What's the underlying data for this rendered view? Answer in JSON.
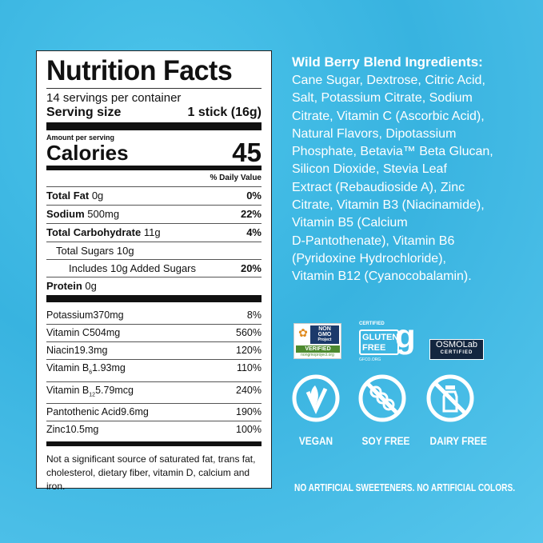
{
  "label": {
    "title": "Nutrition Facts",
    "servings": "14 servings per container",
    "serving_size_label": "Serving size",
    "serving_size_value": "1 stick (16g)",
    "amount_per_serving": "Amount per serving",
    "calories_label": "Calories",
    "calories_value": "45",
    "dv_header": "% Daily Value",
    "rows": [
      {
        "name": "Total Fat",
        "amount": "0g",
        "dv": "0%"
      },
      {
        "name": "Sodium",
        "amount": "500mg",
        "dv": "22%"
      },
      {
        "name": "Total Carbohydrate",
        "amount": "11g",
        "dv": "4%"
      },
      {
        "name": "Total Sugars",
        "amount": "10g",
        "dv": ""
      },
      {
        "name": "Includes 10g Added Sugars",
        "amount": "",
        "dv": "20%"
      },
      {
        "name": "Protein",
        "amount": "0g",
        "dv": ""
      }
    ],
    "vitamins": [
      {
        "name": "Potassium",
        "amount": "370mg",
        "dv": "8%"
      },
      {
        "name": "Vitamin C",
        "amount": "504mg",
        "dv": "560%"
      },
      {
        "name": "Niacin",
        "amount": "19.3mg",
        "dv": "120%"
      },
      {
        "name": "Vitamin B",
        "sub": "6",
        "amount": "1.93mg",
        "dv": "110%"
      },
      {
        "name": "Vitamin B",
        "sub": "12",
        "amount": "5.79mcg",
        "dv": "240%"
      },
      {
        "name": "Pantothenic Acid",
        "amount": "9.6mg",
        "dv": "190%"
      },
      {
        "name": "Zinc",
        "amount": "10.5mg",
        "dv": "100%"
      }
    ],
    "footnote": "Not a significant source of saturated fat, trans fat, cholesterol, dietary fiber, vitamin D, calcium and iron."
  },
  "ingredients": {
    "title": "Wild Berry Blend Ingredients:",
    "lines": [
      "Cane Sugar, Dextrose, Citric Acid,",
      "Salt, Potassium Citrate, Sodium",
      "Citrate, Vitamin C (Ascorbic Acid),",
      "Natural Flavors, Dipotassium",
      "Phosphate, Betavia™ Beta Glucan,",
      "Silicon Dioxide, Stevia Leaf",
      "Extract (Rebaudioside A), Zinc",
      "Citrate, Vitamin B3 (Niacinamide),",
      "Vitamin B5 (Calcium",
      "D-Pantothenate), Vitamin B6",
      "(Pyridoxine Hydrochloride),",
      "Vitamin B12 (Cyanocobalamin)."
    ]
  },
  "certifications": {
    "nongmo": {
      "line1": "NON",
      "line2": "GMO",
      "line3": "Project",
      "verified": "VERIFIED",
      "url": "nongmoproject.org"
    },
    "gluten": {
      "certified": "CERTIFIED",
      "line1": "GLUTEN",
      "line2": "FREE",
      "url": "GFCO.ORG"
    },
    "osmolab": {
      "name": "OSMOLab",
      "certified": "CERTIFIED"
    }
  },
  "badges": [
    {
      "label": "VEGAN",
      "icon": "vegan-leaf-icon"
    },
    {
      "label": "SOY FREE",
      "icon": "no-soy-icon"
    },
    {
      "label": "DAIRY FREE",
      "icon": "no-dairy-icon"
    }
  ],
  "tagline": "NO ARTIFICIAL SWEETENERS. NO ARTIFICIAL COLORS.",
  "colors": {
    "background": "#3cb8e2",
    "text": "#ffffff",
    "nongmo_green": "#4d8a2f"
  }
}
